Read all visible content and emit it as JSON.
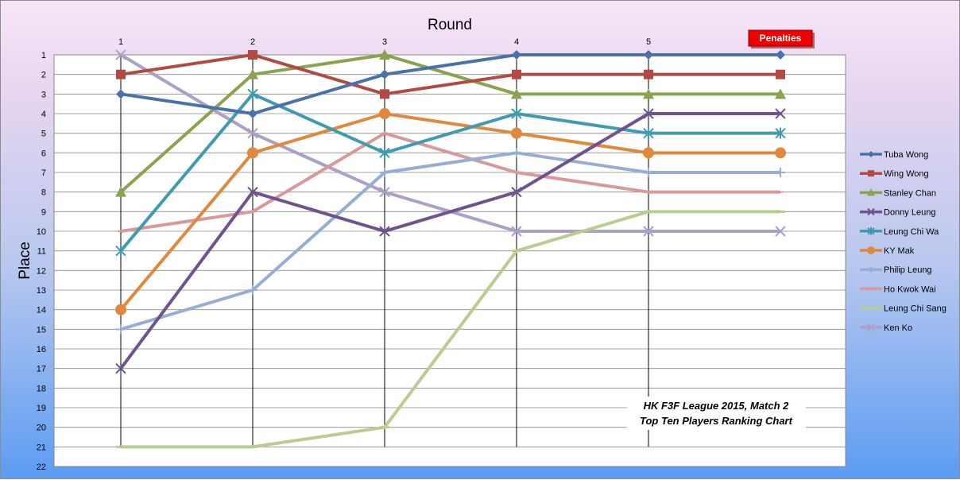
{
  "chart_data": {
    "type": "line",
    "xlabel": "Round",
    "ylabel": "Place",
    "x": [
      "1",
      "2",
      "3",
      "4",
      "5",
      ""
    ],
    "penalties_label": "Penalties",
    "y_ticks": [
      "1",
      "2",
      "3",
      "4",
      "5",
      "6",
      "7",
      "8",
      "9",
      "10",
      "11",
      "12",
      "13",
      "14",
      "15",
      "16",
      "17",
      "18",
      "19",
      "20",
      "21",
      "22"
    ],
    "ylim": [
      1,
      22
    ],
    "y_inverted": true,
    "grid": true,
    "legend_position": "right",
    "annotation": [
      "HK F3F League 2015, Match 2",
      "Top Ten Players Ranking Chart"
    ],
    "series": [
      {
        "name": "Tuba Wong",
        "color": "#4a72a8",
        "marker": "diamond",
        "values": [
          3,
          4,
          2,
          1,
          1,
          1
        ]
      },
      {
        "name": "Wing Wong",
        "color": "#b24a44",
        "marker": "square",
        "values": [
          2,
          1,
          3,
          2,
          2,
          2
        ]
      },
      {
        "name": "Stanley Chan",
        "color": "#89a34f",
        "marker": "triangle",
        "values": [
          8,
          2,
          1,
          3,
          3,
          3
        ]
      },
      {
        "name": "Donny Leung",
        "color": "#6f538e",
        "marker": "x",
        "values": [
          17,
          8,
          10,
          8,
          4,
          4
        ]
      },
      {
        "name": "Leung Chi Wa",
        "color": "#3f9bb0",
        "marker": "star",
        "values": [
          11,
          3,
          6,
          4,
          5,
          5
        ]
      },
      {
        "name": "KY Mak",
        "color": "#e0893c",
        "marker": "circle",
        "values": [
          14,
          6,
          4,
          5,
          6,
          6
        ]
      },
      {
        "name": "Philip Leung",
        "color": "#96aed6",
        "marker": "plus",
        "values": [
          15,
          13,
          7,
          6,
          7,
          7
        ]
      },
      {
        "name": "Ho Kwok Wai",
        "color": "#d9989a",
        "marker": "none",
        "values": [
          10,
          9,
          5,
          7,
          8,
          8
        ]
      },
      {
        "name": "Leung Chi Sang",
        "color": "#b9cd91",
        "marker": "dash",
        "values": [
          21,
          21,
          20,
          11,
          9,
          9
        ]
      },
      {
        "name": "Ken Ko",
        "color": "#ad9fc7",
        "marker": "x",
        "values": [
          1,
          5,
          8,
          10,
          10,
          10
        ]
      }
    ]
  }
}
